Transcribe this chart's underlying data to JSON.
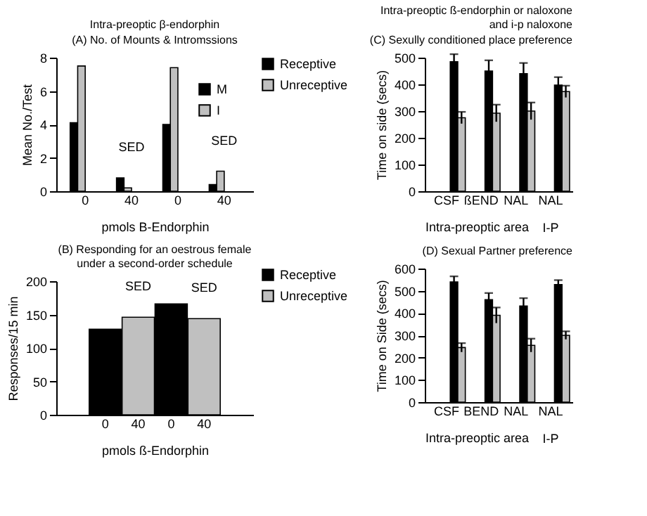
{
  "chart_data": [
    {
      "type": "bar",
      "title": "Intra-preoptic β-endorphin",
      "subtitle": "(A) No. of Mounts & Intromssions",
      "xlabel": "pmols B-Endorphin",
      "ylabel": "Mean No./Test",
      "categories": [
        "0",
        "40",
        "0",
        "40"
      ],
      "series": [
        {
          "name": "M",
          "color": "#000000",
          "values": [
            4.1,
            0.8,
            4.0,
            0.4
          ]
        },
        {
          "name": "I",
          "color": "#c0c0c0",
          "values": [
            7.5,
            0.2,
            7.4,
            1.2
          ]
        }
      ],
      "ylim": [
        0,
        8
      ],
      "yticks": [
        0,
        2,
        4,
        6,
        8
      ],
      "legend": "top right",
      "annotations": [
        "SED",
        "SED"
      ]
    },
    {
      "type": "bar",
      "title": "(B) Responding for an oestrous female\nunder a second-order schedule",
      "xlabel": "pmols ß-Endorphin",
      "ylabel": "Responses/15 min",
      "categories": [
        "0",
        "40",
        "0",
        "40"
      ],
      "values": [
        128,
        146,
        166,
        144
      ],
      "colors": [
        "#000000",
        "#c0c0c0",
        "#000000",
        "#c0c0c0"
      ],
      "ylim": [
        0,
        200
      ],
      "yticks": [
        0,
        50,
        100,
        150,
        200
      ],
      "annotations": [
        "SED",
        "SED"
      ]
    },
    {
      "type": "bar",
      "title": "Intra-preoptic ß-endorphin or naloxone\nand i-p naloxone",
      "subtitle": "(C) Sexully conditioned place preference",
      "xlabel": "Intra-preoptic area",
      "ylabel": "Time on side (secs)",
      "categories": [
        "CSF",
        "ßEND",
        "NAL",
        "NAL"
      ],
      "series": [
        {
          "name": "Receptive",
          "color": "#000000",
          "values": [
            485,
            450,
            440,
            397
          ],
          "errors": [
            28,
            40,
            40,
            30
          ]
        },
        {
          "name": "Unreceptive",
          "color": "#c0c0c0",
          "values": [
            275,
            292,
            300,
            373
          ],
          "errors": [
            22,
            32,
            32,
            22
          ]
        }
      ],
      "ylim": [
        0,
        500
      ],
      "yticks": [
        0,
        100,
        200,
        300,
        400,
        500
      ],
      "legend": "left",
      "annotations": [
        "I-P"
      ]
    },
    {
      "type": "bar",
      "title": "(D) Sexual Partner preference",
      "xlabel": "Intra-preoptic area",
      "ylabel": "Time on Side (secs)",
      "categories": [
        "CSF",
        "BEND",
        "NAL",
        "NAL"
      ],
      "series": [
        {
          "name": "Receptive",
          "color": "#000000",
          "values": [
            540,
            460,
            432,
            528
          ],
          "errors": [
            25,
            30,
            35,
            20
          ]
        },
        {
          "name": "Unreceptive",
          "color": "#c0c0c0",
          "values": [
            245,
            390,
            255,
            300
          ],
          "errors": [
            20,
            35,
            30,
            18
          ]
        }
      ],
      "ylim": [
        0,
        600
      ],
      "yticks": [
        0,
        100,
        200,
        300,
        400,
        500,
        600
      ],
      "legend": "left",
      "annotations": [
        "I-P"
      ]
    }
  ]
}
